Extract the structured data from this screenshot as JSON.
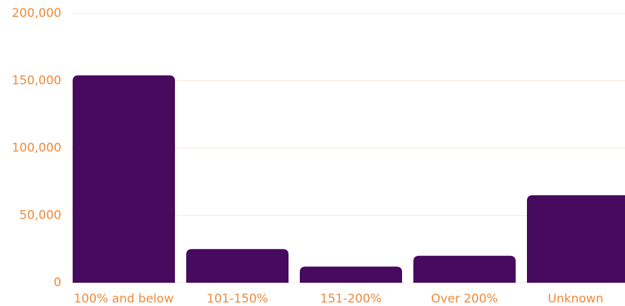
{
  "chart_data": {
    "type": "bar",
    "categories": [
      "100% and below",
      "101-150%",
      "151-200%",
      "Over 200%",
      "Unknown"
    ],
    "values": [
      154000,
      25000,
      12000,
      20000,
      65000
    ],
    "color": "#470a5e",
    "ylim": [
      0,
      200000
    ],
    "yticks": [
      0,
      {
        "value": 50000,
        "label": "50,000"
      },
      {
        "value": 100000,
        "label": "100,000"
      },
      {
        "value": 150000,
        "label": "150,000"
      },
      {
        "value": 200000,
        "label": "200,000"
      }
    ],
    "grid": true
  }
}
